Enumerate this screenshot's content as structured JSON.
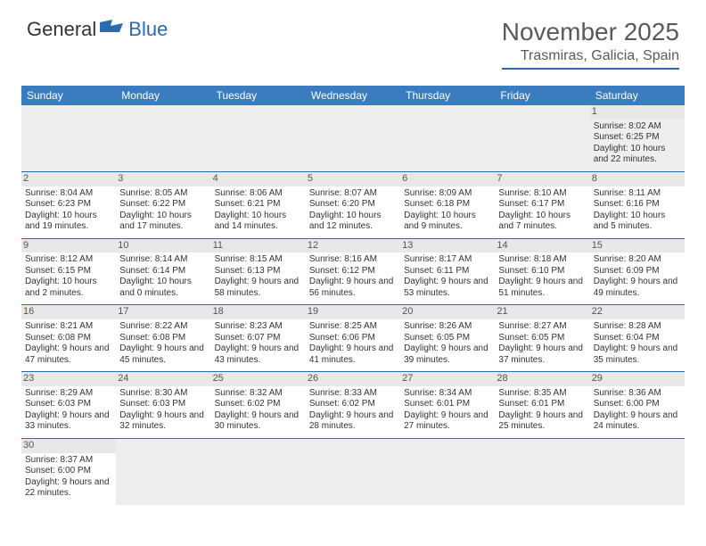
{
  "logo": {
    "text_general": "General",
    "text_blue": "Blue"
  },
  "header": {
    "month": "November 2025",
    "location": "Trasmiras, Galicia, Spain"
  },
  "colors": {
    "header_bg": "#3b7bbf",
    "accent": "#2a6bb0",
    "daynum_bg": "#e8e8e8",
    "text": "#333333",
    "muted": "#5a5a5a"
  },
  "day_names": [
    "Sunday",
    "Monday",
    "Tuesday",
    "Wednesday",
    "Thursday",
    "Friday",
    "Saturday"
  ],
  "weeks": [
    [
      null,
      null,
      null,
      null,
      null,
      null,
      {
        "n": "1",
        "sunrise": "8:02 AM",
        "sunset": "6:25 PM",
        "daylight": "10 hours and 22 minutes."
      }
    ],
    [
      {
        "n": "2",
        "sunrise": "8:04 AM",
        "sunset": "6:23 PM",
        "daylight": "10 hours and 19 minutes."
      },
      {
        "n": "3",
        "sunrise": "8:05 AM",
        "sunset": "6:22 PM",
        "daylight": "10 hours and 17 minutes."
      },
      {
        "n": "4",
        "sunrise": "8:06 AM",
        "sunset": "6:21 PM",
        "daylight": "10 hours and 14 minutes."
      },
      {
        "n": "5",
        "sunrise": "8:07 AM",
        "sunset": "6:20 PM",
        "daylight": "10 hours and 12 minutes."
      },
      {
        "n": "6",
        "sunrise": "8:09 AM",
        "sunset": "6:18 PM",
        "daylight": "10 hours and 9 minutes."
      },
      {
        "n": "7",
        "sunrise": "8:10 AM",
        "sunset": "6:17 PM",
        "daylight": "10 hours and 7 minutes."
      },
      {
        "n": "8",
        "sunrise": "8:11 AM",
        "sunset": "6:16 PM",
        "daylight": "10 hours and 5 minutes."
      }
    ],
    [
      {
        "n": "9",
        "sunrise": "8:12 AM",
        "sunset": "6:15 PM",
        "daylight": "10 hours and 2 minutes."
      },
      {
        "n": "10",
        "sunrise": "8:14 AM",
        "sunset": "6:14 PM",
        "daylight": "10 hours and 0 minutes."
      },
      {
        "n": "11",
        "sunrise": "8:15 AM",
        "sunset": "6:13 PM",
        "daylight": "9 hours and 58 minutes."
      },
      {
        "n": "12",
        "sunrise": "8:16 AM",
        "sunset": "6:12 PM",
        "daylight": "9 hours and 56 minutes."
      },
      {
        "n": "13",
        "sunrise": "8:17 AM",
        "sunset": "6:11 PM",
        "daylight": "9 hours and 53 minutes."
      },
      {
        "n": "14",
        "sunrise": "8:18 AM",
        "sunset": "6:10 PM",
        "daylight": "9 hours and 51 minutes."
      },
      {
        "n": "15",
        "sunrise": "8:20 AM",
        "sunset": "6:09 PM",
        "daylight": "9 hours and 49 minutes."
      }
    ],
    [
      {
        "n": "16",
        "sunrise": "8:21 AM",
        "sunset": "6:08 PM",
        "daylight": "9 hours and 47 minutes."
      },
      {
        "n": "17",
        "sunrise": "8:22 AM",
        "sunset": "6:08 PM",
        "daylight": "9 hours and 45 minutes."
      },
      {
        "n": "18",
        "sunrise": "8:23 AM",
        "sunset": "6:07 PM",
        "daylight": "9 hours and 43 minutes."
      },
      {
        "n": "19",
        "sunrise": "8:25 AM",
        "sunset": "6:06 PM",
        "daylight": "9 hours and 41 minutes."
      },
      {
        "n": "20",
        "sunrise": "8:26 AM",
        "sunset": "6:05 PM",
        "daylight": "9 hours and 39 minutes."
      },
      {
        "n": "21",
        "sunrise": "8:27 AM",
        "sunset": "6:05 PM",
        "daylight": "9 hours and 37 minutes."
      },
      {
        "n": "22",
        "sunrise": "8:28 AM",
        "sunset": "6:04 PM",
        "daylight": "9 hours and 35 minutes."
      }
    ],
    [
      {
        "n": "23",
        "sunrise": "8:29 AM",
        "sunset": "6:03 PM",
        "daylight": "9 hours and 33 minutes."
      },
      {
        "n": "24",
        "sunrise": "8:30 AM",
        "sunset": "6:03 PM",
        "daylight": "9 hours and 32 minutes."
      },
      {
        "n": "25",
        "sunrise": "8:32 AM",
        "sunset": "6:02 PM",
        "daylight": "9 hours and 30 minutes."
      },
      {
        "n": "26",
        "sunrise": "8:33 AM",
        "sunset": "6:02 PM",
        "daylight": "9 hours and 28 minutes."
      },
      {
        "n": "27",
        "sunrise": "8:34 AM",
        "sunset": "6:01 PM",
        "daylight": "9 hours and 27 minutes."
      },
      {
        "n": "28",
        "sunrise": "8:35 AM",
        "sunset": "6:01 PM",
        "daylight": "9 hours and 25 minutes."
      },
      {
        "n": "29",
        "sunrise": "8:36 AM",
        "sunset": "6:00 PM",
        "daylight": "9 hours and 24 minutes."
      }
    ],
    [
      {
        "n": "30",
        "sunrise": "8:37 AM",
        "sunset": "6:00 PM",
        "daylight": "9 hours and 22 minutes."
      },
      null,
      null,
      null,
      null,
      null,
      null
    ]
  ],
  "labels": {
    "sunrise": "Sunrise: ",
    "sunset": "Sunset: ",
    "daylight": "Daylight: "
  }
}
